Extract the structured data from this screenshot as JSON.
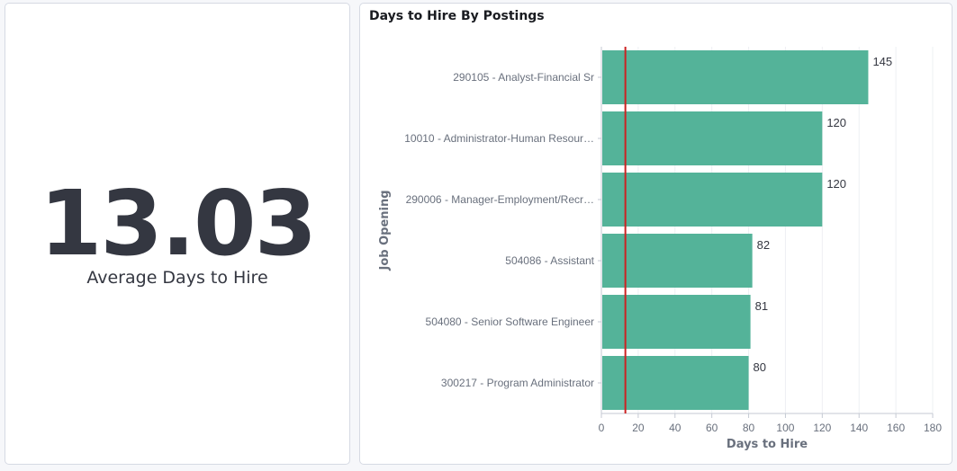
{
  "metric": {
    "value": "13.03",
    "label": "Average Days to Hire"
  },
  "chart_panel": {
    "title": "Days to Hire By Postings"
  },
  "chart_data": {
    "type": "bar",
    "orientation": "horizontal",
    "categories": [
      "290105 - Analyst-Financial Sr",
      "10010 - Administrator-Human Resour…",
      "290006 - Manager-Employment/Recr…",
      "504086 - Assistant",
      "504080 - Senior Software Engineer",
      "300217 - Program Administrator"
    ],
    "values": [
      145,
      120,
      120,
      82,
      81,
      80
    ],
    "value_labels": [
      "145",
      "120",
      "120",
      "82",
      "81",
      "80"
    ],
    "xlabel": "Days to Hire",
    "ylabel": "Job Opening",
    "xlim": [
      0,
      180
    ],
    "xticks": [
      "0",
      "20",
      "40",
      "60",
      "80",
      "100",
      "120",
      "140",
      "160",
      "180"
    ],
    "threshold_line": 13.03,
    "grid": "vertical",
    "colors": {
      "bar": "#54b399",
      "threshold": "#cc2222",
      "grid": "#eef0f3",
      "axis": "#c5cad3"
    }
  }
}
